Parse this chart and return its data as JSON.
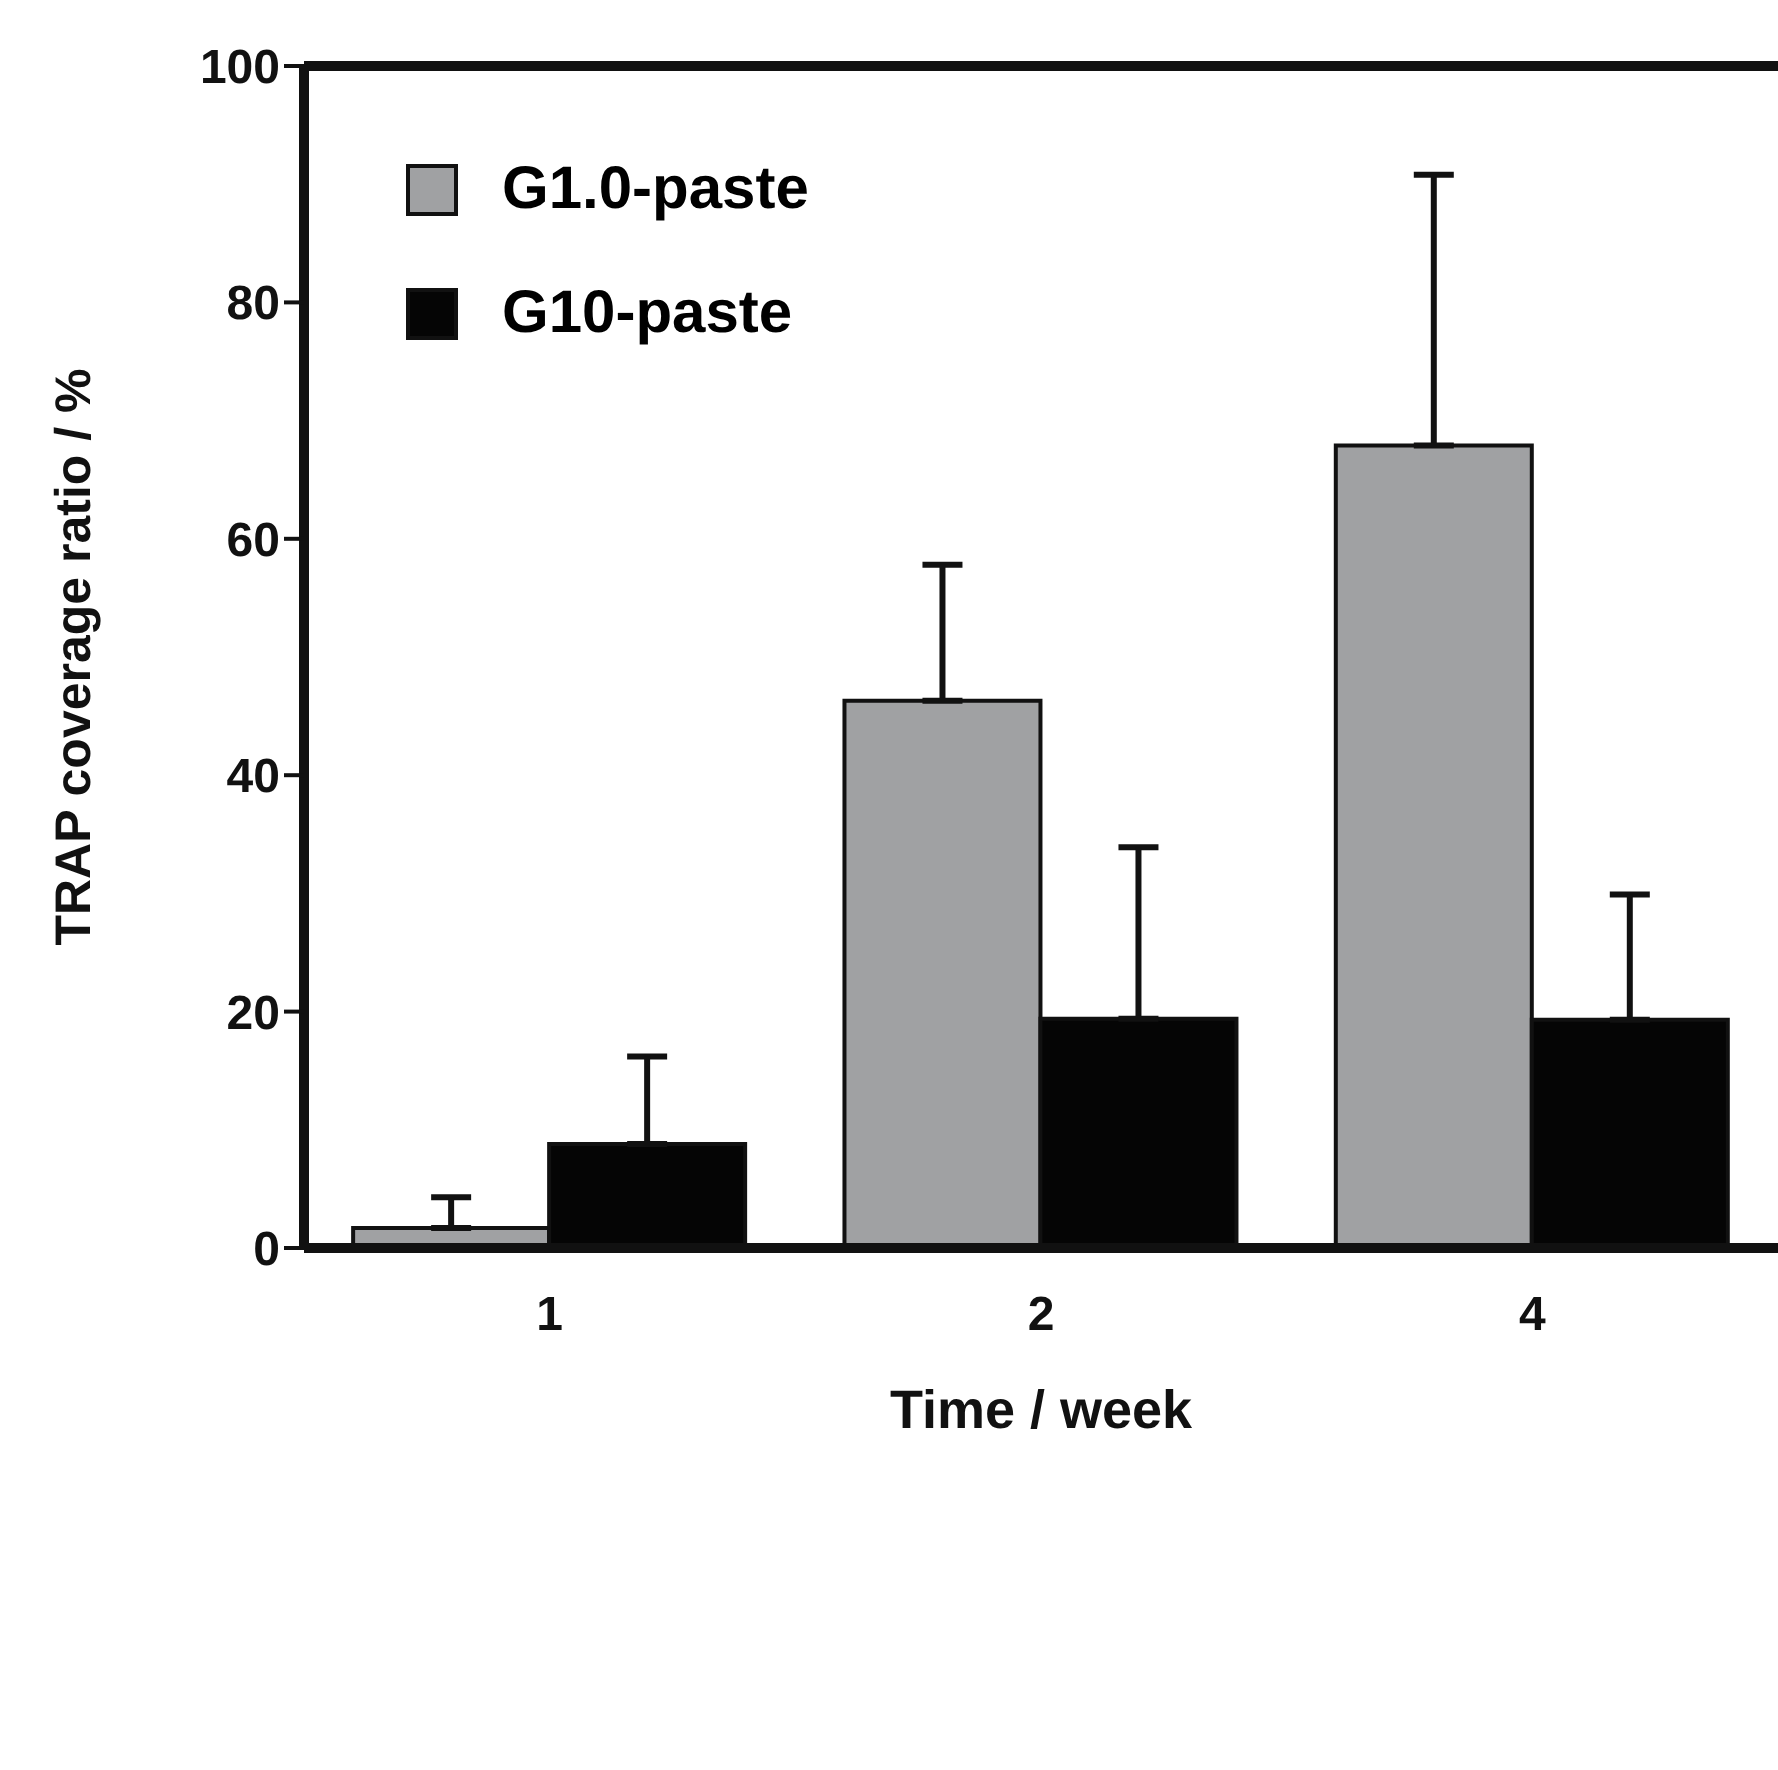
{
  "chart_data": {
    "type": "bar",
    "xlabel": "Time / week",
    "ylabel": "TRAP coverage ratio / %",
    "categories": [
      "1",
      "2",
      "4"
    ],
    "series": [
      {
        "name": "G1.0-paste",
        "color": "#a0a1a3",
        "values": [
          1.7,
          46.3,
          67.9
        ],
        "errors": [
          [
            1.7,
            4.3
          ],
          [
            46.3,
            57.8
          ],
          [
            67.9,
            90.8
          ]
        ]
      },
      {
        "name": "G10-paste",
        "color": "#050505",
        "values": [
          8.8,
          19.4,
          19.3
        ],
        "errors": [
          [
            8.8,
            16.2
          ],
          [
            19.4,
            33.9
          ],
          [
            19.3,
            29.9
          ]
        ]
      }
    ],
    "ylim": [
      0,
      100
    ],
    "yticks": [
      0,
      20,
      40,
      60,
      80,
      100
    ],
    "grid": false,
    "legend": "top left"
  }
}
